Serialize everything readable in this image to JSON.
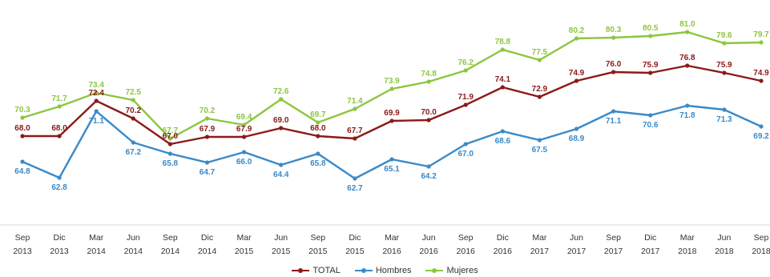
{
  "chart_data": {
    "type": "line",
    "categories": [
      [
        "Sep",
        "2013"
      ],
      [
        "Dic",
        "2013"
      ],
      [
        "Mar",
        "2014"
      ],
      [
        "Jun",
        "2014"
      ],
      [
        "Sep",
        "2014"
      ],
      [
        "Dic",
        "2014"
      ],
      [
        "Mar",
        "2015"
      ],
      [
        "Jun",
        "2015"
      ],
      [
        "Sep",
        "2015"
      ],
      [
        "Dic",
        "2015"
      ],
      [
        "Mar",
        "2016"
      ],
      [
        "Jun",
        "2016"
      ],
      [
        "Sep",
        "2016"
      ],
      [
        "Dic",
        "2016"
      ],
      [
        "Mar",
        "2017"
      ],
      [
        "Jun",
        "2017"
      ],
      [
        "Sep",
        "2017"
      ],
      [
        "Dic",
        "2017"
      ],
      [
        "Mar",
        "2018"
      ],
      [
        "Jun",
        "2018"
      ],
      [
        "Sep",
        "2018"
      ]
    ],
    "series": [
      {
        "name": "TOTAL",
        "color": "#8b1a1a",
        "values": [
          68.0,
          68.0,
          72.4,
          70.2,
          67.0,
          67.9,
          67.9,
          69.0,
          68.0,
          67.7,
          69.9,
          70.0,
          71.9,
          74.1,
          72.9,
          74.9,
          76.0,
          75.9,
          76.8,
          75.9,
          74.9
        ]
      },
      {
        "name": "Hombres",
        "color": "#3a8ac8",
        "values": [
          64.8,
          62.8,
          71.1,
          67.2,
          65.8,
          64.7,
          66.0,
          64.4,
          65.8,
          62.7,
          65.1,
          64.2,
          67.0,
          68.6,
          67.5,
          68.9,
          71.1,
          70.6,
          71.8,
          71.3,
          69.2
        ]
      },
      {
        "name": "Mujeres",
        "color": "#8cc63f",
        "values": [
          70.3,
          71.7,
          73.4,
          72.5,
          67.7,
          70.2,
          69.4,
          72.6,
          69.7,
          71.4,
          73.9,
          74.8,
          76.2,
          78.8,
          77.5,
          80.2,
          80.3,
          80.5,
          81.0,
          79.6,
          79.7
        ]
      }
    ],
    "title": "",
    "xlabel": "",
    "ylabel": "",
    "ylim": [
      58,
      83
    ],
    "grid": false,
    "legend": "bottom"
  }
}
